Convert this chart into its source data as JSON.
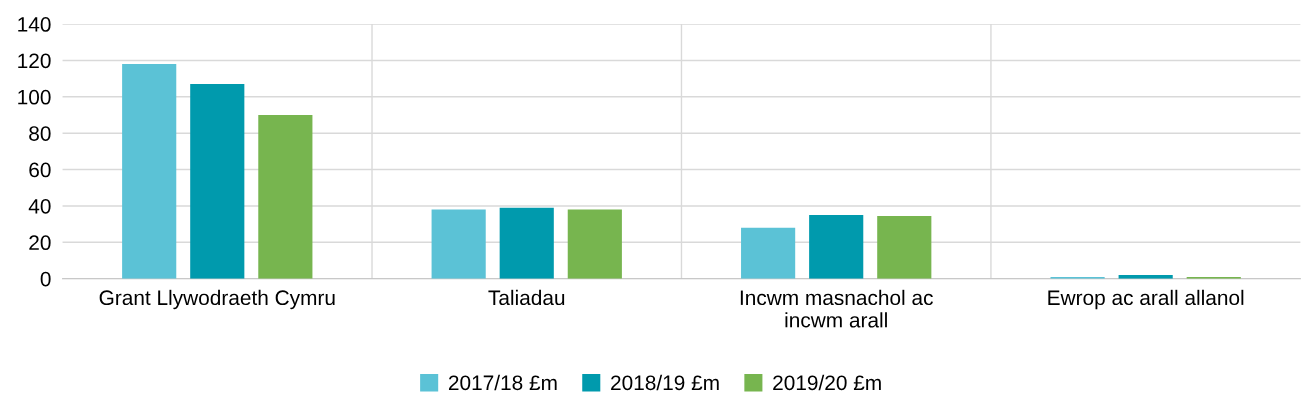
{
  "chart_data": {
    "type": "bar",
    "categories": [
      "Grant Llywodraeth Cymru",
      "Taliadau",
      "Incwm masnachol ac\nincwm arall",
      "Ewrop ac arall allanol"
    ],
    "series": [
      {
        "name": "2017/18 £m",
        "color": "#5bc2d6",
        "values": [
          118,
          38,
          28,
          1
        ]
      },
      {
        "name": "2018/19 £m",
        "color": "#009aad",
        "values": [
          107,
          39,
          35,
          2
        ]
      },
      {
        "name": "2019/20 £m",
        "color": "#77b54f",
        "values": [
          90,
          38,
          34.5,
          1
        ]
      }
    ],
    "ylim": [
      0,
      140
    ],
    "yticks": [
      0,
      20,
      40,
      60,
      80,
      100,
      120,
      140
    ],
    "grid": true,
    "legend": "bottom"
  }
}
